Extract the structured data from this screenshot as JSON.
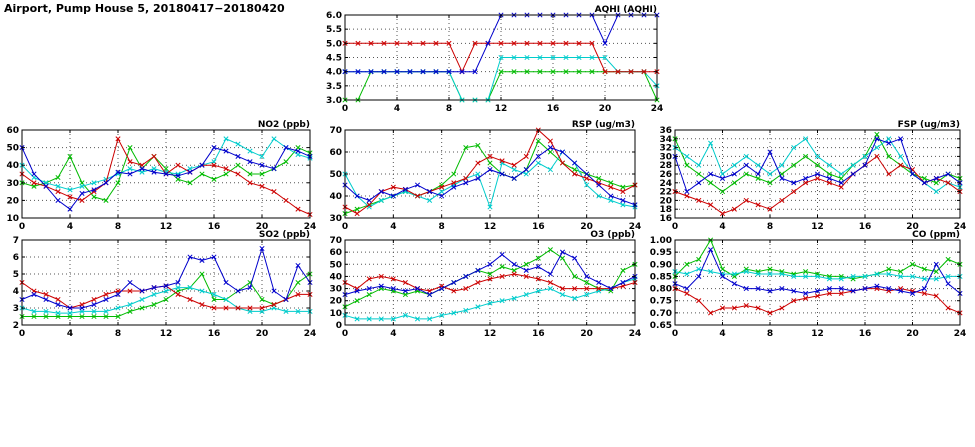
{
  "page": {
    "title": "Airport, Pump House 5, 20180417−20180420"
  },
  "style": {
    "grid_color": "#555555",
    "axis_color": "#000000",
    "background": "#ffffff",
    "marker": "x-cross",
    "series_colors": {
      "red": "#cc0000",
      "blue": "#0000cc",
      "green": "#00bb00",
      "cyan": "#00cccc"
    }
  },
  "chart_data": [
    {
      "id": "aqhi",
      "type": "line",
      "title": "AQHI (AQHI)",
      "xlim": [
        0,
        24
      ],
      "xticks": [
        "0",
        "4",
        "8",
        "12",
        "16",
        "20",
        "24"
      ],
      "ylim": [
        3.0,
        6.0
      ],
      "yticks": [
        "3.0",
        "3.5",
        "4.0",
        "4.5",
        "5.0",
        "5.5",
        "6.0"
      ],
      "x_start": 0,
      "x_step": 1,
      "grid": "dotted",
      "legend": "none",
      "series": [
        {
          "name": "green",
          "color": "#00bb00",
          "values": [
            3,
            3,
            4,
            4,
            4,
            4,
            4,
            4,
            4,
            3,
            3,
            3,
            4,
            4,
            4,
            4,
            4,
            4,
            4,
            4,
            4,
            4,
            4,
            4,
            3
          ]
        },
        {
          "name": "cyan",
          "color": "#00cccc",
          "values": [
            4,
            4,
            4,
            4,
            4,
            4,
            4,
            4,
            4,
            3,
            3,
            3,
            4.5,
            4.5,
            4.5,
            4.5,
            4.5,
            4.5,
            4.5,
            4.5,
            4.5,
            4,
            4,
            4,
            3.5
          ]
        },
        {
          "name": "red",
          "color": "#cc0000",
          "values": [
            5,
            5,
            5,
            5,
            5,
            5,
            5,
            5,
            5,
            4,
            5,
            5,
            5,
            5,
            5,
            5,
            5,
            5,
            5,
            5,
            4,
            4,
            4,
            4,
            4
          ]
        },
        {
          "name": "blue",
          "color": "#0000cc",
          "values": [
            4,
            4,
            4,
            4,
            4,
            4,
            4,
            4,
            4,
            4,
            4,
            5,
            6,
            6,
            6,
            6,
            6,
            6,
            6,
            6,
            5,
            6,
            6,
            6,
            6
          ]
        }
      ]
    },
    {
      "id": "no2",
      "type": "line",
      "title": "NO2 (ppb)",
      "xlim": [
        0,
        24
      ],
      "xticks": [
        "0",
        "4",
        "8",
        "12",
        "16",
        "20",
        "24"
      ],
      "ylim": [
        10,
        60
      ],
      "yticks": [
        "10",
        "20",
        "30",
        "40",
        "50",
        "60"
      ],
      "x_start": 0,
      "x_step": 1,
      "grid": "dotted",
      "legend": "none",
      "series": [
        {
          "name": "green",
          "color": "#00bb00",
          "values": [
            30,
            28,
            30,
            33,
            45,
            30,
            22,
            20,
            30,
            50,
            38,
            45,
            38,
            32,
            30,
            35,
            32,
            35,
            40,
            35,
            35,
            38,
            42,
            50,
            47
          ]
        },
        {
          "name": "cyan",
          "color": "#00cccc",
          "values": [
            40,
            33,
            30,
            28,
            26,
            28,
            30,
            32,
            35,
            38,
            36,
            38,
            36,
            35,
            38,
            40,
            42,
            55,
            52,
            48,
            45,
            55,
            50,
            46,
            44
          ]
        },
        {
          "name": "red",
          "color": "#cc0000",
          "values": [
            35,
            30,
            28,
            25,
            22,
            20,
            25,
            30,
            55,
            42,
            40,
            45,
            35,
            40,
            36,
            40,
            40,
            38,
            35,
            30,
            28,
            25,
            20,
            15,
            12
          ]
        },
        {
          "name": "blue",
          "color": "#0000cc",
          "values": [
            50,
            35,
            28,
            20,
            15,
            24,
            26,
            30,
            36,
            35,
            38,
            36,
            35,
            34,
            36,
            40,
            50,
            48,
            45,
            42,
            40,
            38,
            50,
            48,
            45
          ]
        }
      ]
    },
    {
      "id": "rsp",
      "type": "line",
      "title": "RSP (ug/m3)",
      "xlim": [
        0,
        24
      ],
      "xticks": [
        "0",
        "4",
        "8",
        "12",
        "16",
        "20",
        "24"
      ],
      "ylim": [
        30,
        70
      ],
      "yticks": [
        "30",
        "40",
        "50",
        "60",
        "70"
      ],
      "x_start": 0,
      "x_step": 1,
      "grid": "dotted",
      "legend": "none",
      "series": [
        {
          "name": "green",
          "color": "#00bb00",
          "values": [
            32,
            34,
            36,
            38,
            40,
            42,
            40,
            42,
            45,
            50,
            62,
            63,
            55,
            50,
            48,
            52,
            65,
            60,
            55,
            52,
            50,
            48,
            46,
            44,
            45
          ]
        },
        {
          "name": "cyan",
          "color": "#00cccc",
          "values": [
            50,
            40,
            35,
            38,
            40,
            42,
            40,
            38,
            42,
            45,
            48,
            50,
            35,
            55,
            52,
            50,
            55,
            52,
            60,
            55,
            45,
            40,
            38,
            36,
            35
          ]
        },
        {
          "name": "red",
          "color": "#cc0000",
          "values": [
            35,
            32,
            36,
            42,
            44,
            43,
            40,
            42,
            44,
            46,
            48,
            55,
            58,
            56,
            54,
            58,
            70,
            65,
            55,
            50,
            48,
            46,
            44,
            42,
            45
          ]
        },
        {
          "name": "blue",
          "color": "#0000cc",
          "values": [
            45,
            40,
            38,
            42,
            40,
            43,
            45,
            42,
            40,
            44,
            46,
            48,
            52,
            50,
            48,
            52,
            58,
            62,
            60,
            55,
            50,
            45,
            40,
            38,
            36
          ]
        }
      ]
    },
    {
      "id": "fsp",
      "type": "line",
      "title": "FSP (ug/m3)",
      "xlim": [
        0,
        24
      ],
      "xticks": [
        "0",
        "4",
        "8",
        "12",
        "16",
        "20",
        "24"
      ],
      "ylim": [
        16,
        36
      ],
      "yticks": [
        "16",
        "18",
        "20",
        "22",
        "24",
        "26",
        "28",
        "30",
        "32",
        "34",
        "36"
      ],
      "x_start": 0,
      "x_step": 1,
      "grid": "dotted",
      "legend": "none",
      "series": [
        {
          "name": "green",
          "color": "#00bb00",
          "values": [
            34,
            28,
            26,
            24,
            22,
            24,
            26,
            25,
            24,
            26,
            28,
            30,
            28,
            26,
            25,
            28,
            30,
            35,
            30,
            28,
            26,
            25,
            24,
            26,
            25
          ]
        },
        {
          "name": "cyan",
          "color": "#00cccc",
          "values": [
            32,
            30,
            28,
            33,
            26,
            28,
            30,
            28,
            26,
            28,
            32,
            34,
            30,
            28,
            26,
            28,
            30,
            32,
            34,
            30,
            26,
            24,
            22,
            24,
            23
          ]
        },
        {
          "name": "red",
          "color": "#cc0000",
          "values": [
            22,
            21,
            20,
            19,
            17,
            18,
            20,
            19,
            18,
            20,
            22,
            24,
            25,
            24,
            23,
            26,
            28,
            30,
            26,
            28,
            27,
            24,
            25,
            24,
            22
          ]
        },
        {
          "name": "blue",
          "color": "#0000cc",
          "values": [
            30,
            22,
            24,
            26,
            25,
            26,
            28,
            26,
            31,
            25,
            24,
            25,
            26,
            25,
            24,
            26,
            28,
            34,
            33,
            34,
            26,
            24,
            25,
            26,
            24
          ]
        }
      ]
    },
    {
      "id": "so2",
      "type": "line",
      "title": "SO2 (ppb)",
      "xlim": [
        0,
        24
      ],
      "xticks": [
        "0",
        "4",
        "8",
        "12",
        "16",
        "20",
        "24"
      ],
      "ylim": [
        2,
        7
      ],
      "yticks": [
        "2",
        "3",
        "4",
        "5",
        "6",
        "7"
      ],
      "x_start": 0,
      "x_step": 1,
      "grid": "dotted",
      "legend": "none",
      "series": [
        {
          "name": "green",
          "color": "#00bb00",
          "values": [
            2.5,
            2.5,
            2.5,
            2.5,
            2.5,
            2.5,
            2.5,
            2.5,
            2.5,
            2.8,
            3,
            3.2,
            3.5,
            4,
            4.2,
            5,
            3.5,
            3.5,
            4,
            4.5,
            3.5,
            3.2,
            3.5,
            4.5,
            5
          ]
        },
        {
          "name": "cyan",
          "color": "#00cccc",
          "values": [
            3,
            2.8,
            2.8,
            2.7,
            2.7,
            2.8,
            2.8,
            2.8,
            3,
            3.2,
            3.5,
            3.8,
            4,
            4.2,
            4.2,
            4,
            3.8,
            3.5,
            3,
            2.8,
            2.8,
            3,
            2.8,
            2.8,
            2.8
          ]
        },
        {
          "name": "red",
          "color": "#cc0000",
          "values": [
            4.5,
            4,
            3.8,
            3.5,
            3,
            3.2,
            3.5,
            3.8,
            4,
            4,
            4,
            4.2,
            4.3,
            3.8,
            3.5,
            3.2,
            3,
            3,
            3,
            3,
            3,
            3.2,
            3.5,
            3.8,
            3.8
          ]
        },
        {
          "name": "blue",
          "color": "#0000cc",
          "values": [
            3.5,
            3.8,
            3.5,
            3.2,
            3,
            3,
            3.2,
            3.5,
            3.8,
            4.5,
            4,
            4.2,
            4.3,
            4.5,
            6,
            5.8,
            6,
            4.5,
            4,
            4.2,
            6.5,
            4,
            3.5,
            5.5,
            4.5
          ]
        }
      ]
    },
    {
      "id": "o3",
      "type": "line",
      "title": "O3 (ppb)",
      "xlim": [
        0,
        24
      ],
      "xticks": [
        "0",
        "4",
        "8",
        "12",
        "16",
        "20",
        "24"
      ],
      "ylim": [
        0,
        70
      ],
      "yticks": [
        "0",
        "10",
        "20",
        "30",
        "40",
        "50",
        "60",
        "70"
      ],
      "x_start": 0,
      "x_step": 1,
      "grid": "dotted",
      "legend": "none",
      "series": [
        {
          "name": "green",
          "color": "#00bb00",
          "values": [
            15,
            20,
            25,
            30,
            28,
            25,
            28,
            25,
            30,
            35,
            40,
            45,
            42,
            48,
            45,
            50,
            55,
            62,
            55,
            40,
            35,
            30,
            28,
            45,
            50
          ]
        },
        {
          "name": "cyan",
          "color": "#00cccc",
          "values": [
            8,
            5,
            5,
            5,
            5,
            8,
            5,
            5,
            8,
            10,
            12,
            15,
            18,
            20,
            22,
            25,
            28,
            30,
            25,
            22,
            25,
            28,
            30,
            35,
            38
          ]
        },
        {
          "name": "red",
          "color": "#cc0000",
          "values": [
            35,
            30,
            38,
            40,
            38,
            35,
            30,
            28,
            32,
            28,
            30,
            35,
            38,
            40,
            42,
            40,
            38,
            35,
            30,
            30,
            30,
            30,
            30,
            32,
            35
          ]
        },
        {
          "name": "blue",
          "color": "#0000cc",
          "values": [
            25,
            28,
            30,
            32,
            30,
            28,
            30,
            25,
            30,
            35,
            40,
            45,
            50,
            58,
            50,
            45,
            48,
            42,
            60,
            55,
            40,
            35,
            30,
            35,
            40
          ]
        }
      ]
    },
    {
      "id": "co",
      "type": "line",
      "title": "CO (ppm)",
      "xlim": [
        0,
        24
      ],
      "xticks": [
        "0",
        "4",
        "8",
        "12",
        "16",
        "20",
        "24"
      ],
      "ylim": [
        0.65,
        1.0
      ],
      "yticks": [
        "0.65",
        "0.70",
        "0.75",
        "0.80",
        "0.85",
        "0.90",
        "0.95",
        "1.00"
      ],
      "x_start": 0,
      "x_step": 1,
      "grid": "dotted",
      "legend": "none",
      "series": [
        {
          "name": "green",
          "color": "#00bb00",
          "values": [
            0.85,
            0.9,
            0.92,
            1.0,
            0.88,
            0.85,
            0.88,
            0.87,
            0.88,
            0.87,
            0.86,
            0.87,
            0.86,
            0.85,
            0.85,
            0.84,
            0.85,
            0.86,
            0.88,
            0.87,
            0.9,
            0.88,
            0.87,
            0.92,
            0.9
          ]
        },
        {
          "name": "cyan",
          "color": "#00cccc",
          "values": [
            0.87,
            0.86,
            0.88,
            0.87,
            0.86,
            0.86,
            0.87,
            0.86,
            0.86,
            0.86,
            0.85,
            0.85,
            0.85,
            0.84,
            0.84,
            0.85,
            0.85,
            0.86,
            0.86,
            0.85,
            0.85,
            0.84,
            0.84,
            0.85,
            0.85
          ]
        },
        {
          "name": "red",
          "color": "#cc0000",
          "values": [
            0.8,
            0.78,
            0.75,
            0.7,
            0.72,
            0.72,
            0.73,
            0.72,
            0.7,
            0.72,
            0.75,
            0.76,
            0.77,
            0.78,
            0.78,
            0.79,
            0.8,
            0.8,
            0.79,
            0.8,
            0.79,
            0.78,
            0.77,
            0.72,
            0.7
          ]
        },
        {
          "name": "blue",
          "color": "#0000cc",
          "values": [
            0.82,
            0.8,
            0.85,
            0.96,
            0.85,
            0.82,
            0.8,
            0.8,
            0.79,
            0.8,
            0.79,
            0.78,
            0.79,
            0.8,
            0.8,
            0.79,
            0.8,
            0.81,
            0.8,
            0.79,
            0.78,
            0.8,
            0.9,
            0.82,
            0.78
          ]
        }
      ]
    }
  ]
}
